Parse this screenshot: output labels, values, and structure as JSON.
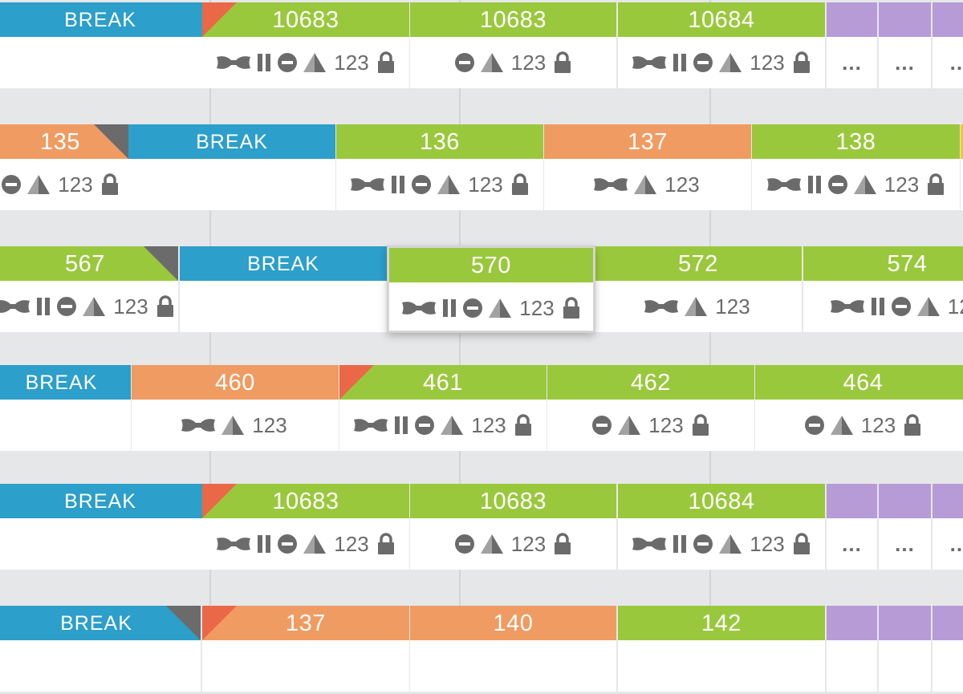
{
  "colors": {
    "green": "#9ac83d",
    "blue": "#2c9fca",
    "orange": "#f09b62",
    "purple": "#b79bd6",
    "red": "#ea6848",
    "dark": "#6b6b6b"
  },
  "rows": [
    {
      "cards": [
        {
          "label": "BREAK",
          "color": "blue",
          "break": true,
          "icons": []
        },
        {
          "label": "10683",
          "color": "green",
          "corner": "tl",
          "icons": [
            "bowtie",
            "pause",
            "minus",
            "pyramid",
            "num",
            "lock"
          ]
        },
        {
          "label": "10683",
          "color": "green",
          "icons": [
            "minus",
            "pyramid",
            "num",
            "lock"
          ]
        },
        {
          "label": "10684",
          "color": "green",
          "icons": [
            "bowtie",
            "pause",
            "minus",
            "pyramid",
            "num",
            "lock"
          ]
        },
        {
          "label": "",
          "color": "purple",
          "dots": "..."
        },
        {
          "label": "",
          "color": "purple",
          "dots": "..."
        },
        {
          "label": "",
          "color": "purple",
          "dots": "..."
        }
      ]
    },
    {
      "cards": [
        {
          "label": "135",
          "color": "orange",
          "corner": "tr",
          "icons": [
            "minus",
            "pyramid",
            "num",
            "lock"
          ]
        },
        {
          "label": "BREAK",
          "color": "blue",
          "break": true,
          "icons": []
        },
        {
          "label": "136",
          "color": "green",
          "icons": [
            "bowtie",
            "pause",
            "minus",
            "pyramid",
            "num",
            "lock"
          ]
        },
        {
          "label": "137",
          "color": "orange",
          "icons": [
            "bowtie",
            "pyramid",
            "num"
          ]
        },
        {
          "label": "138",
          "color": "green",
          "icons": [
            "bowtie",
            "pause",
            "minus",
            "pyramid",
            "num",
            "lock"
          ]
        },
        {
          "label": "",
          "color": "yellow",
          "icons": []
        }
      ]
    },
    {
      "cards": [
        {
          "label": "567",
          "color": "green",
          "corner": "tr",
          "icons": [
            "bowtie",
            "pause",
            "minus",
            "pyramid",
            "num",
            "lock"
          ]
        },
        {
          "label": "BREAK",
          "color": "blue",
          "break": true,
          "icons": []
        },
        {
          "label": "570",
          "color": "green",
          "selected": true,
          "icons": [
            "bowtie",
            "pause",
            "minus",
            "pyramid",
            "num",
            "lock"
          ]
        },
        {
          "label": "572",
          "color": "green",
          "icons": [
            "bowtie",
            "pyramid",
            "num"
          ]
        },
        {
          "label": "574",
          "color": "green",
          "icons": [
            "bowtie",
            "pause",
            "minus",
            "pyramid",
            "num"
          ]
        }
      ]
    },
    {
      "cards": [
        {
          "label": "BREAK",
          "color": "blue",
          "break": true,
          "icons": []
        },
        {
          "label": "460",
          "color": "orange",
          "icons": [
            "bowtie",
            "pyramid",
            "num"
          ]
        },
        {
          "label": "461",
          "color": "green",
          "corner": "tl",
          "icons": [
            "bowtie",
            "pause",
            "minus",
            "pyramid",
            "num",
            "lock"
          ]
        },
        {
          "label": "462",
          "color": "green",
          "icons": [
            "minus",
            "pyramid",
            "num",
            "lock"
          ]
        },
        {
          "label": "464",
          "color": "green",
          "icons": [
            "minus",
            "pyramid",
            "num",
            "lock"
          ]
        }
      ]
    },
    {
      "cards": [
        {
          "label": "BREAK",
          "color": "blue",
          "break": true,
          "icons": []
        },
        {
          "label": "10683",
          "color": "green",
          "corner": "tl",
          "icons": [
            "bowtie",
            "pause",
            "minus",
            "pyramid",
            "num",
            "lock"
          ]
        },
        {
          "label": "10683",
          "color": "green",
          "icons": [
            "minus",
            "pyramid",
            "num",
            "lock"
          ]
        },
        {
          "label": "10684",
          "color": "green",
          "icons": [
            "bowtie",
            "pause",
            "minus",
            "pyramid",
            "num",
            "lock"
          ]
        },
        {
          "label": "",
          "color": "purple",
          "dots": "..."
        },
        {
          "label": "",
          "color": "purple",
          "dots": "..."
        },
        {
          "label": "",
          "color": "purple",
          "dots": "..."
        }
      ]
    },
    {
      "cards": [
        {
          "label": "BREAK",
          "color": "blue",
          "break": true,
          "corner": "tr",
          "icons": []
        },
        {
          "label": "137",
          "color": "orange",
          "corner": "tl",
          "icons": []
        },
        {
          "label": "140",
          "color": "orange",
          "icons": []
        },
        {
          "label": "142",
          "color": "green",
          "icons": []
        },
        {
          "label": "",
          "color": "purple",
          "icons": []
        },
        {
          "label": "",
          "color": "purple",
          "icons": []
        },
        {
          "label": "",
          "color": "purple",
          "icons": []
        }
      ]
    }
  ],
  "num_text": "123"
}
